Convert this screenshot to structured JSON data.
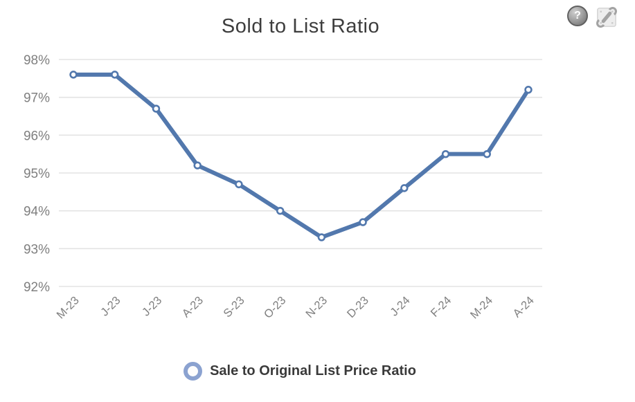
{
  "header": {
    "title": "Sold to List Ratio",
    "help_icon": "help-icon",
    "help_glyph": "?",
    "tools_icon": "tools-icon"
  },
  "legend": {
    "marker_icon": "open-circle-marker",
    "label": "Sale to Original List Price Ratio"
  },
  "colors": {
    "line": "#5278ad",
    "marker_fill": "#ffffff",
    "marker_stroke": "#5278ad",
    "legend_ring": "#8ba2d0",
    "gridline": "#e3e3e3",
    "axis_label": "#7f7f7f",
    "title_text": "#3d3d3d",
    "legend_text": "#3a3a3a"
  },
  "chart_data": {
    "type": "line",
    "title": "Sold to List Ratio",
    "categories": [
      "M-23",
      "J-23",
      "J-23",
      "A-23",
      "S-23",
      "O-23",
      "N-23",
      "D-23",
      "J-24",
      "F-24",
      "M-24",
      "A-24"
    ],
    "series": [
      {
        "name": "Sale to Original List Price Ratio",
        "values": [
          97.6,
          97.6,
          96.7,
          95.2,
          94.7,
          94.0,
          93.3,
          93.7,
          94.6,
          95.5,
          95.5,
          97.2
        ]
      }
    ],
    "xlabel": "",
    "ylabel": "",
    "ylim": [
      92,
      98
    ],
    "yticks": [
      98,
      97,
      96,
      95,
      94,
      93,
      92
    ],
    "ytick_labels": [
      "98%",
      "97%",
      "96%",
      "95%",
      "94%",
      "93%",
      "92%"
    ],
    "grid": true,
    "legend_position": "bottom",
    "marker": "circle-open"
  }
}
